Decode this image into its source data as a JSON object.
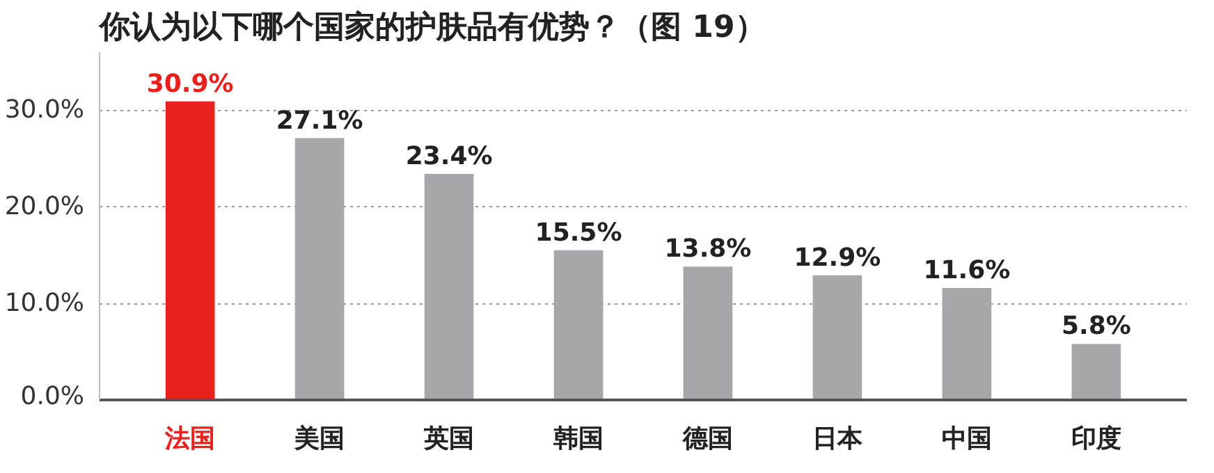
{
  "chart_data": {
    "type": "bar",
    "title": "你认为以下哪个国家的护肤品有优势？（图 19）",
    "categories": [
      "法国",
      "美国",
      "英国",
      "韩国",
      "德国",
      "日本",
      "中国",
      "印度"
    ],
    "values": [
      30.9,
      27.1,
      23.4,
      15.5,
      13.8,
      12.9,
      11.6,
      5.8
    ],
    "value_labels": [
      "30.9%",
      "27.1%",
      "23.4%",
      "15.5%",
      "13.8%",
      "12.9%",
      "11.6%",
      "5.8%"
    ],
    "colors": [
      "#e8211d",
      "#a7a7a9",
      "#a7a7a9",
      "#a7a7a9",
      "#a7a7a9",
      "#a7a7a9",
      "#a7a7a9",
      "#a7a7a9"
    ],
    "ylim": [
      0,
      36
    ],
    "yticks": [
      {
        "value": 0,
        "label": "0.0%"
      },
      {
        "value": 10,
        "label": "10.0%"
      },
      {
        "value": 20,
        "label": "20.0%"
      },
      {
        "value": 30,
        "label": "30.0%"
      }
    ],
    "grid": "y"
  }
}
